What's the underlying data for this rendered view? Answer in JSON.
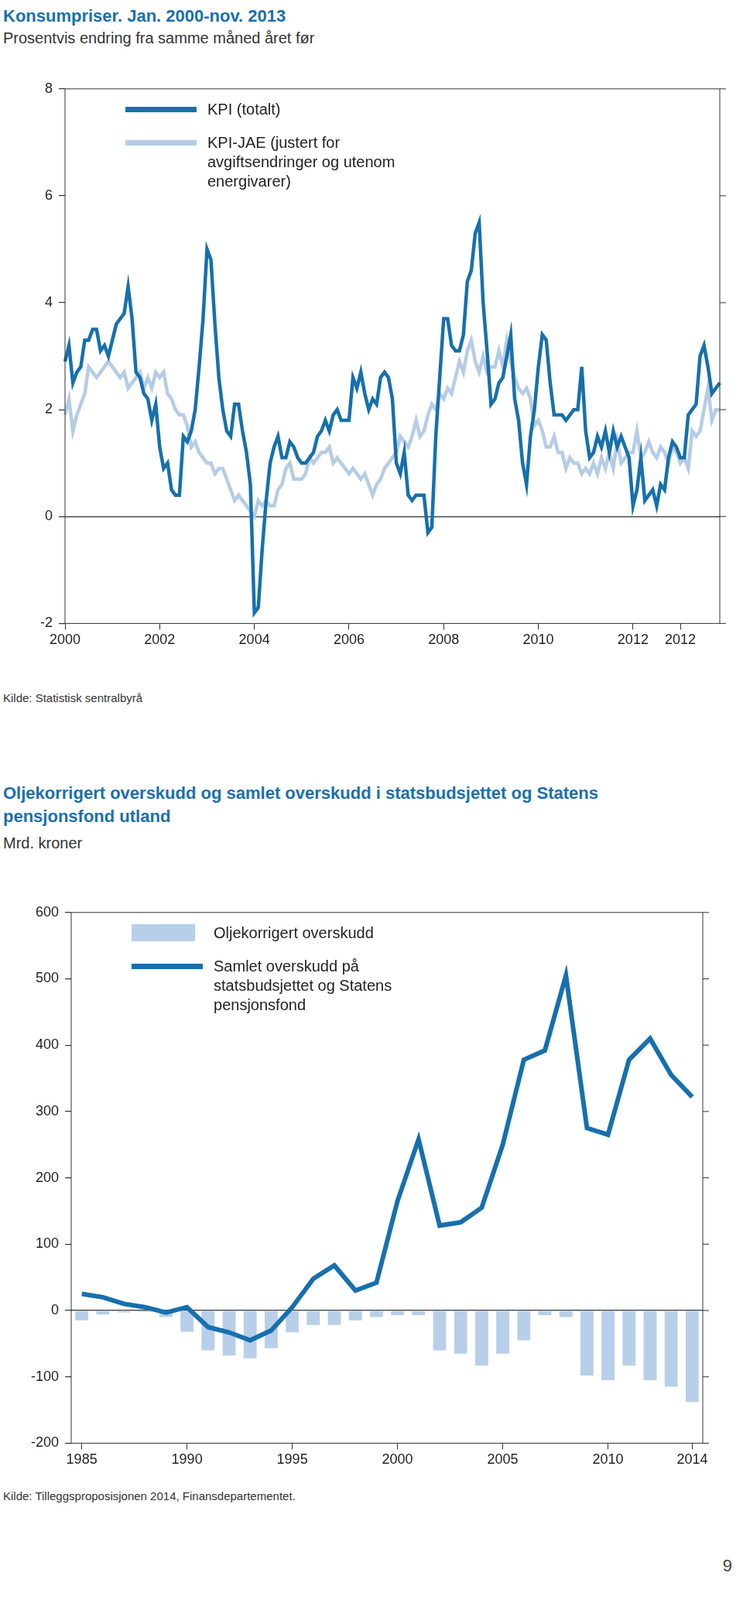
{
  "chart_data": [
    {
      "type": "line",
      "title": "Konsumpriser. Jan. 2000-nov. 2013",
      "subtitle": "Prosentvis endring fra samme måned året før",
      "source": "Kilde: Statistisk sentralbyrå",
      "categories": [
        "2000",
        null,
        null,
        null,
        null,
        null,
        null,
        null,
        null,
        null,
        null,
        null,
        null,
        null,
        null,
        null,
        null,
        null,
        null,
        null,
        null,
        null,
        null,
        null,
        "2002",
        null,
        null,
        null,
        null,
        null,
        null,
        null,
        null,
        null,
        null,
        null,
        null,
        null,
        null,
        null,
        null,
        null,
        null,
        null,
        null,
        null,
        null,
        null,
        "2004",
        null,
        null,
        null,
        null,
        null,
        null,
        null,
        null,
        null,
        null,
        null,
        null,
        null,
        null,
        null,
        null,
        null,
        null,
        null,
        null,
        null,
        null,
        null,
        "2006",
        null,
        null,
        null,
        null,
        null,
        null,
        null,
        null,
        null,
        null,
        null,
        null,
        null,
        null,
        null,
        null,
        null,
        null,
        null,
        null,
        null,
        null,
        null,
        "2008",
        null,
        null,
        null,
        null,
        null,
        null,
        null,
        null,
        null,
        null,
        null,
        null,
        null,
        null,
        null,
        null,
        null,
        null,
        null,
        null,
        null,
        null,
        null,
        "2010",
        null,
        null,
        null,
        null,
        null,
        null,
        null,
        null,
        null,
        null,
        null,
        null,
        null,
        null,
        null,
        null,
        null,
        null,
        null,
        null,
        null,
        null,
        null,
        "2012",
        null,
        null,
        null,
        null,
        null,
        null,
        null,
        null,
        null,
        null,
        null,
        "2012",
        null,
        null,
        null,
        null,
        null,
        null,
        null,
        null,
        null,
        null
      ],
      "series": [
        {
          "name": "KPI (totalt)",
          "color": "#1670ad",
          "values": [
            2.9,
            3.2,
            2.5,
            2.7,
            2.8,
            3.3,
            3.3,
            3.5,
            3.5,
            3.1,
            3.2,
            3.0,
            3.3,
            3.6,
            3.7,
            3.8,
            4.3,
            3.7,
            2.7,
            2.6,
            2.3,
            2.2,
            1.8,
            2.1,
            1.3,
            0.9,
            1.0,
            0.5,
            0.4,
            0.4,
            1.5,
            1.4,
            1.6,
            2.0,
            2.8,
            3.7,
            5.0,
            4.8,
            3.6,
            2.6,
            2.0,
            1.6,
            1.5,
            2.1,
            2.1,
            1.6,
            1.2,
            0.6,
            -1.8,
            -1.7,
            -0.6,
            0.3,
            1.0,
            1.3,
            1.5,
            1.1,
            1.1,
            1.4,
            1.3,
            1.1,
            1.0,
            1.0,
            1.1,
            1.2,
            1.5,
            1.6,
            1.8,
            1.6,
            1.9,
            2.0,
            1.8,
            1.8,
            1.8,
            2.6,
            2.4,
            2.7,
            2.3,
            2.0,
            2.2,
            2.1,
            2.6,
            2.7,
            2.6,
            2.2,
            1.0,
            0.8,
            1.2,
            0.4,
            0.3,
            0.4,
            0.4,
            0.4,
            -0.3,
            -0.2,
            1.5,
            2.6,
            3.7,
            3.7,
            3.2,
            3.1,
            3.1,
            3.4,
            4.4,
            4.6,
            5.3,
            5.5,
            4.0,
            3.1,
            2.1,
            2.2,
            2.5,
            2.6,
            3.0,
            3.4,
            2.2,
            1.8,
            1.0,
            0.6,
            1.5,
            2.0,
            2.8,
            3.4,
            3.3,
            2.5,
            1.9,
            1.9,
            1.9,
            1.8,
            1.9,
            2.0,
            2.0,
            2.8,
            1.6,
            1.1,
            1.2,
            1.5,
            1.3,
            1.6,
            1.2,
            1.6,
            1.3,
            1.5,
            1.3,
            1.1,
            0.2,
            0.5,
            1.1,
            0.3,
            0.4,
            0.5,
            0.2,
            0.6,
            0.5,
            1.1,
            1.4,
            1.3,
            1.1,
            1.1,
            1.9,
            2.0,
            2.1,
            3.0,
            3.2,
            2.8,
            2.3,
            2.4,
            2.5
          ]
        },
        {
          "name": "KPI-JAE (justert for avgiftsendringer og utenom energivarer)",
          "color": "#b5cce6",
          "values": [
            1.9,
            2.2,
            1.6,
            1.9,
            2.1,
            2.3,
            2.8,
            2.7,
            2.6,
            2.7,
            2.8,
            2.9,
            2.8,
            2.7,
            2.6,
            2.7,
            2.4,
            2.5,
            2.6,
            2.7,
            2.4,
            2.6,
            2.4,
            2.7,
            2.6,
            2.7,
            2.3,
            2.2,
            2.0,
            1.9,
            1.9,
            1.7,
            1.3,
            1.4,
            1.2,
            1.1,
            1.0,
            1.0,
            0.8,
            0.9,
            0.9,
            0.7,
            0.5,
            0.3,
            0.4,
            0.3,
            0.2,
            0.1,
            0.0,
            0.3,
            0.2,
            0.3,
            0.2,
            0.2,
            0.5,
            0.6,
            0.9,
            1.0,
            0.7,
            0.7,
            0.7,
            0.8,
            1.1,
            1.0,
            1.1,
            1.2,
            1.2,
            1.3,
            1.0,
            1.1,
            1.0,
            0.9,
            0.8,
            0.9,
            0.8,
            0.7,
            0.8,
            0.6,
            0.4,
            0.6,
            0.7,
            0.9,
            1.0,
            1.1,
            1.2,
            1.5,
            1.4,
            1.3,
            1.5,
            1.8,
            1.5,
            1.6,
            1.9,
            2.1,
            2.0,
            2.3,
            2.2,
            2.4,
            2.3,
            2.6,
            2.9,
            2.7,
            3.1,
            3.3,
            2.9,
            2.7,
            3.0,
            2.7,
            2.8,
            2.8,
            3.1,
            2.8,
            3.3,
            2.9,
            2.6,
            2.4,
            2.3,
            2.4,
            2.2,
            1.7,
            1.8,
            1.6,
            1.3,
            1.3,
            1.5,
            1.2,
            1.2,
            0.9,
            1.1,
            1.0,
            1.0,
            0.8,
            0.9,
            0.8,
            1.0,
            0.8,
            1.1,
            0.9,
            1.2,
            0.9,
            1.4,
            1.0,
            1.1,
            1.2,
            1.2,
            1.6,
            1.1,
            1.2,
            1.4,
            1.2,
            1.1,
            1.3,
            1.2,
            1.0,
            1.3,
            1.2,
            1.0,
            1.1,
            0.9,
            1.6,
            1.5,
            1.6,
            2.0,
            2.4,
            1.8,
            2.0,
            2.0
          ]
        }
      ],
      "ylim": [
        -2,
        8
      ],
      "yticks": [
        -2,
        0,
        2,
        4,
        6,
        8
      ],
      "grid": false,
      "legend": "upper left"
    },
    {
      "type": "bar",
      "title": "Oljekorrigert overskudd og samlet overskudd i statsbudsjettet og Statens pensjonsfond utland",
      "subtitle": "Mrd. kroner",
      "source": "Kilde: Tilleggsproposisjonen 2014, Finansdepartementet.",
      "categories": [
        "1985",
        null,
        null,
        null,
        null,
        "1990",
        null,
        null,
        null,
        null,
        "1995",
        null,
        null,
        null,
        null,
        "2000",
        null,
        null,
        null,
        null,
        "2005",
        null,
        null,
        null,
        null,
        "2010",
        null,
        null,
        null,
        "2014"
      ],
      "series": [
        {
          "name": "Oljekorrigert overskudd",
          "type": "bar",
          "color": "#b8cfe9",
          "values": [
            -15,
            -6,
            -3,
            -2,
            -10,
            -32,
            -60,
            -68,
            -72,
            -57,
            -33,
            -22,
            -22,
            -15,
            -10,
            -7,
            -7,
            -60,
            -65,
            -83,
            -65,
            -45,
            -7,
            -10,
            -98,
            -105,
            -83,
            -105,
            -115,
            -138
          ]
        },
        {
          "name": "Samlet overskudd på statsbudsjettet og Statens pensjonsfond",
          "type": "line",
          "color": "#1670ad",
          "values": [
            25,
            20,
            10,
            5,
            -3,
            5,
            -25,
            -33,
            -45,
            -30,
            5,
            48,
            68,
            30,
            42,
            165,
            258,
            128,
            133,
            155,
            250,
            378,
            392,
            505,
            275,
            265,
            378,
            410,
            355,
            322
          ]
        }
      ],
      "ylim": [
        -200,
        600
      ],
      "yticks": [
        -200,
        -100,
        0,
        100,
        200,
        300,
        400,
        500,
        600
      ],
      "grid": false,
      "legend": "upper left"
    }
  ],
  "page_number": "9"
}
